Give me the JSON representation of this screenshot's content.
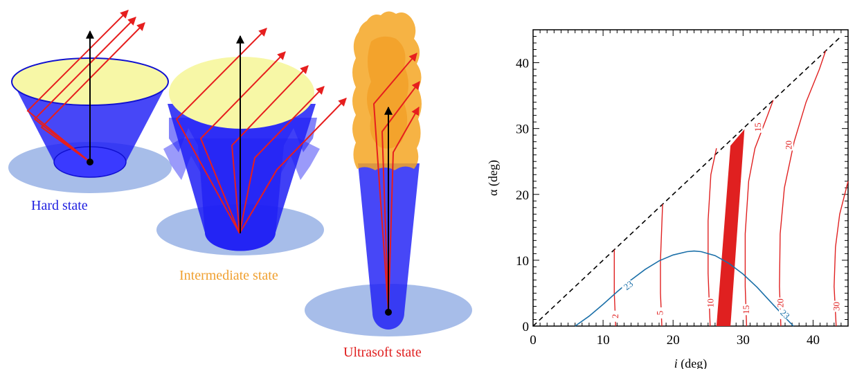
{
  "labels": {
    "hard": "Hard state",
    "intermediate": "Intermediate state",
    "ultrasoft": "Ultrasoft state"
  },
  "colors": {
    "funnel_blue": "#1f1ff5",
    "disk_blue": "#a7bde9",
    "top_yellow": "#f7f7a6",
    "outflow_orange": "#f5a623",
    "ray_red": "#e61e1e",
    "contour_red": "#e02020",
    "contour_blue": "#1a6fa8",
    "hard_label": "#2020e0",
    "intermediate_label": "#f0a030",
    "ultrasoft_label": "#e02020"
  },
  "chart_data": {
    "type": "contour",
    "xlabel_prefix": "i",
    "xlabel_suffix": " (deg)",
    "ylabel": "α (deg)",
    "xlim": [
      0,
      45
    ],
    "ylim": [
      0,
      45
    ],
    "xticks": [
      0,
      10,
      20,
      30,
      40
    ],
    "yticks": [
      0,
      10,
      20,
      30,
      40
    ],
    "diagonal": {
      "style": "dashed",
      "from": [
        0,
        0
      ],
      "to": [
        44,
        44
      ]
    },
    "red_contours": [
      {
        "label": "2",
        "label_at": [
          11.7,
          1.5
        ],
        "points": [
          [
            11.8,
            0
          ],
          [
            11.6,
            5
          ],
          [
            11.6,
            11.6
          ]
        ]
      },
      {
        "label": "5",
        "label_at": [
          18.1,
          2.0
        ],
        "points": [
          [
            18.4,
            0
          ],
          [
            18.2,
            5
          ],
          [
            18.2,
            10
          ],
          [
            18.5,
            18.5
          ]
        ]
      },
      {
        "label": "10",
        "label_at": [
          25.3,
          3.5
        ],
        "points": [
          [
            25.3,
            0
          ],
          [
            25.0,
            8
          ],
          [
            25.0,
            16
          ],
          [
            25.4,
            23
          ],
          [
            26.2,
            27
          ]
        ]
      },
      {
        "label": "15",
        "label_at": [
          30.4,
          2.5
        ],
        "points": [
          [
            30.5,
            0
          ],
          [
            30.3,
            6
          ],
          [
            30.3,
            14
          ],
          [
            30.8,
            22
          ],
          [
            31.7,
            27
          ],
          [
            33.5,
            32
          ],
          [
            34.3,
            34.3
          ]
        ]
      },
      {
        "label": "15",
        "label_at": [
          32.1,
          30.2
        ],
        "points": []
      },
      {
        "label": "20",
        "label_at": [
          35.3,
          3.5
        ],
        "points": [
          [
            35.4,
            0
          ],
          [
            35.2,
            6
          ],
          [
            35.3,
            14
          ],
          [
            35.9,
            21
          ],
          [
            37.3,
            28
          ],
          [
            39.0,
            34
          ],
          [
            40.9,
            39
          ],
          [
            41.8,
            41.8
          ]
        ]
      },
      {
        "label": "20",
        "label_at": [
          36.5,
          27.5
        ],
        "points": []
      },
      {
        "label": "30",
        "label_at": [
          43.3,
          3.0
        ],
        "points": [
          [
            43.3,
            0
          ],
          [
            43.0,
            6
          ],
          [
            43.2,
            12
          ],
          [
            43.8,
            17
          ],
          [
            45.0,
            22
          ]
        ]
      }
    ],
    "blue_contour": {
      "label": "23",
      "label_at": [
        [
          13.6,
          6.2
        ],
        [
          36.0,
          1.8
        ]
      ],
      "points": [
        [
          6,
          0
        ],
        [
          8,
          1.5
        ],
        [
          10,
          3.3
        ],
        [
          12,
          5.2
        ],
        [
          14,
          7.0
        ],
        [
          16,
          8.6
        ],
        [
          18,
          9.9
        ],
        [
          20,
          10.8
        ],
        [
          22,
          11.3
        ],
        [
          23,
          11.4
        ],
        [
          24,
          11.3
        ],
        [
          26,
          10.7
        ],
        [
          28,
          9.5
        ],
        [
          30,
          7.9
        ],
        [
          32,
          5.9
        ],
        [
          34,
          3.6
        ],
        [
          36,
          1.3
        ],
        [
          37.2,
          0
        ]
      ]
    },
    "red_band": {
      "bottom": [
        26.2,
        28.2
      ],
      "top": [
        28.2,
        30.2
      ],
      "top_alpha": 29.9
    }
  }
}
